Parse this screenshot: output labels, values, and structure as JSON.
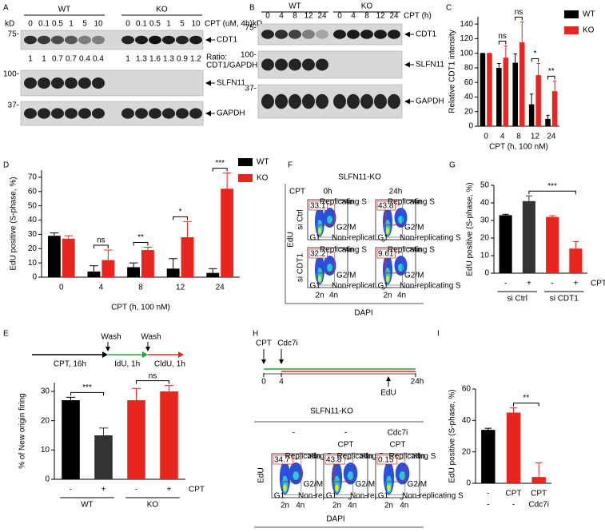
{
  "chart_data": [
    {
      "type": "bar",
      "panel": "C",
      "categories": [
        0,
        4,
        8,
        12,
        24
      ],
      "series": [
        {
          "name": "WT",
          "color": "#000000",
          "values": [
            100,
            80,
            87,
            30,
            10
          ],
          "errors": [
            0,
            6,
            12,
            14,
            5
          ]
        },
        {
          "name": "KO",
          "color": "#e8251f",
          "values": [
            100,
            94,
            115,
            70,
            48
          ],
          "errors": [
            0,
            16,
            28,
            16,
            14
          ]
        }
      ],
      "ylim": [
        0,
        150
      ],
      "yticks": [
        0,
        20,
        40,
        60,
        80,
        100,
        120,
        140
      ],
      "y_label": "Relative CDT1 intensity",
      "x_label": "CPT (h, 100 nM)",
      "annotations": [
        "ns",
        "ns",
        "*",
        "**"
      ]
    },
    {
      "type": "bar",
      "panel": "D",
      "categories": [
        0,
        4,
        8,
        12,
        24
      ],
      "series": [
        {
          "name": "WT",
          "color": "#000000",
          "values": [
            29,
            4,
            7,
            6,
            3
          ],
          "errors": [
            2,
            4,
            3,
            7,
            3
          ]
        },
        {
          "name": "KO",
          "color": "#e8251f",
          "values": [
            27,
            12,
            19,
            28,
            62
          ],
          "errors": [
            2,
            7,
            2,
            11,
            11
          ]
        }
      ],
      "ylim": [
        0,
        75
      ],
      "yticks": [
        0,
        10,
        20,
        30,
        40,
        50,
        60,
        70
      ],
      "y_label": "EdU positive (S-phase, %)",
      "x_label": "CPT (h, 100 nM)",
      "annotations": [
        "ns",
        "**",
        "*",
        "***"
      ]
    },
    {
      "type": "bar",
      "panel": "E",
      "categories": [
        "-",
        "+",
        "-",
        "+"
      ],
      "groups": [
        "WT",
        "KO"
      ],
      "x_title": "CPT",
      "values": [
        27,
        15,
        27,
        30
      ],
      "errors": [
        1,
        2.5,
        4,
        2
      ],
      "colors": [
        "#000000",
        "#333333",
        "#e8251f",
        "#e8251f"
      ],
      "ylim": [
        0,
        33
      ],
      "yticks": [
        0,
        10,
        20,
        30
      ],
      "y_label": "% of New origin firing",
      "annotations": [
        "***",
        "ns"
      ]
    },
    {
      "type": "bar",
      "panel": "G",
      "categories": [
        "-",
        "+",
        "-",
        "+"
      ],
      "groups": [
        "si Ctrl",
        "si CDT1"
      ],
      "x_title": "CPT",
      "values": [
        33,
        41,
        32,
        14
      ],
      "errors": [
        0.5,
        3,
        0.7,
        4
      ],
      "colors": [
        "#000000",
        "#333333",
        "#e8251f",
        "#e8251f"
      ],
      "ylim": [
        0,
        50
      ],
      "yticks": [
        0,
        10,
        20,
        30,
        40,
        50
      ],
      "y_label": "EdU positive (S-phase, %)",
      "annotations": [
        "***"
      ]
    },
    {
      "type": "bar",
      "panel": "I",
      "categories": [
        "-",
        "CPT",
        "CPT"
      ],
      "categories2": [
        "-",
        "-",
        "Cdc7i"
      ],
      "values": [
        34,
        45,
        4
      ],
      "errors": [
        1,
        3,
        9
      ],
      "colors": [
        "#000000",
        "#e8251f",
        "#e8251f"
      ],
      "ylim": [
        0,
        60
      ],
      "yticks": [
        0,
        20,
        40,
        60
      ],
      "y_label": "EdU positive (S-phase, %)",
      "annotations": [
        "**"
      ]
    }
  ],
  "blots": [
    {
      "panel": "A",
      "unit": "kD",
      "groups": [
        "WT",
        "KO"
      ],
      "lanes": [
        0,
        0.1,
        0.5,
        1,
        5,
        10,
        0,
        0.1,
        0.5,
        1,
        5,
        10
      ],
      "condition": "CPT (uM, 4h)",
      "markers": [
        "75-",
        "100-",
        "37-"
      ],
      "proteins": [
        "CDT1",
        "SLFN11",
        "GAPDH"
      ],
      "ratios": [
        1,
        1,
        0.7,
        0.7,
        0.4,
        0.4,
        1,
        1.3,
        1.6,
        1.3,
        0.9,
        1.2
      ],
      "ratio_label": [
        "Ratio:",
        "CDT1/GAPDH"
      ]
    },
    {
      "panel": "B",
      "unit": "kD",
      "groups": [
        "WT",
        "KO"
      ],
      "lanes": [
        0,
        4,
        8,
        12,
        24,
        0,
        4,
        8,
        12,
        24
      ],
      "condition": "CPT (h)",
      "markers": [
        "75-",
        "100-",
        "37-"
      ],
      "proteins": [
        "CDT1",
        "SLFN11",
        "GAPDH"
      ]
    }
  ],
  "timeline_E": {
    "segments": [
      "CPT, 16h",
      "IdU, 1h",
      "CldU, 1h"
    ],
    "washes": [
      "Wash",
      "Wash"
    ]
  },
  "flow_F": {
    "panel": "F",
    "title": "SLFN11-KO",
    "condition": "CPT",
    "columns": [
      "0h",
      "24h"
    ],
    "rows": [
      "si Ctrl",
      "si CDT1"
    ],
    "values": [
      33.1,
      43.8,
      32.2,
      9.61
    ],
    "y_label": "EdU",
    "x_label": "DAPI",
    "x_ticks": [
      "2n",
      "4n"
    ],
    "gates": [
      "Replicating S",
      ">4n",
      "G1",
      "G2/M",
      "Non-replicating S"
    ]
  },
  "flow_H": {
    "panel": "H",
    "timeline": {
      "top": [
        "CPT",
        "Cdc7i"
      ],
      "ticks": [
        0,
        4,
        "24h"
      ],
      "bottom": "EdU"
    },
    "title": "SLFN11-KO",
    "row1": [
      "-",
      "-",
      "Cdc7i"
    ],
    "row2": [
      null,
      "CPT",
      "CPT"
    ],
    "values": [
      34.7,
      43.8,
      0.15
    ],
    "y_label": "EdU",
    "x_label": "DAPI",
    "x_ticks": [
      "2n",
      "4n"
    ],
    "gates": [
      "Replicating S",
      ">4n",
      "G1",
      "G2/M",
      "Non-replicating S"
    ]
  }
}
